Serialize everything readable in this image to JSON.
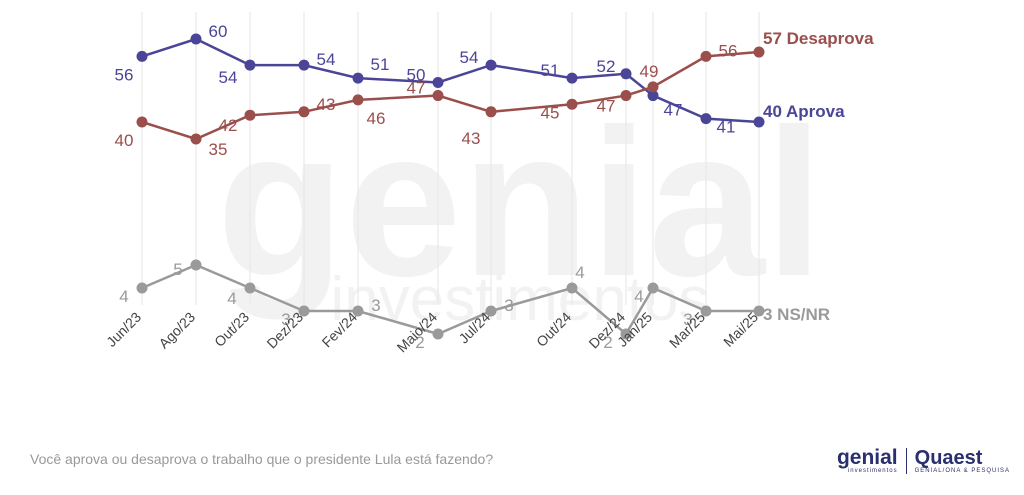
{
  "chart_data": {
    "type": "line",
    "x": [
      "Jun/23",
      "Ago/23",
      "Out/23",
      "Dez/23",
      "Fev/24",
      "Maio/24",
      "Jul/24",
      "Out/24",
      "Dez/24",
      "Jan/25",
      "Mar/25",
      "Mai/25"
    ],
    "series": [
      {
        "name": "Aprova",
        "end_label": "40 Aprova",
        "color": "#4b4597",
        "values": [
          56,
          60,
          54,
          54,
          51,
          50,
          54,
          51,
          52,
          47,
          41,
          40
        ],
        "labels": [
          "56",
          "60",
          "54",
          "54",
          "51",
          "50",
          "54",
          "51",
          "52",
          "47",
          "41",
          ""
        ]
      },
      {
        "name": "Desaprova",
        "end_label": "57 Desaprova",
        "color": "#9b4f4c",
        "values": [
          40,
          35,
          42,
          43,
          46,
          47,
          43,
          45,
          47,
          49,
          56,
          57
        ],
        "labels": [
          "40",
          "35",
          "42",
          "43",
          "46",
          "47",
          "43",
          "45",
          "47",
          "49",
          "56",
          ""
        ]
      },
      {
        "name": "NS/NR",
        "end_label": "3 NS/NR",
        "color": "#9a9a9a",
        "values": [
          4,
          5,
          4,
          3,
          3,
          2,
          3,
          4,
          2,
          4,
          3,
          3
        ],
        "labels": [
          "4",
          "5",
          "4",
          "3",
          "3",
          "2",
          "3",
          "4",
          "2",
          "4",
          "3",
          ""
        ]
      }
    ],
    "grid": "vertical"
  },
  "watermark": {
    "word": "genial",
    "sub": "investimentos"
  },
  "question": "Você aprova ou desaprova o trabalho que o presidente Lula está fazendo?",
  "logos": {
    "genial": "genial",
    "genial_sub": "investimentos",
    "quaest": "Quaest",
    "quaest_sub": "GENIAL/ONA & PESQUISA"
  }
}
